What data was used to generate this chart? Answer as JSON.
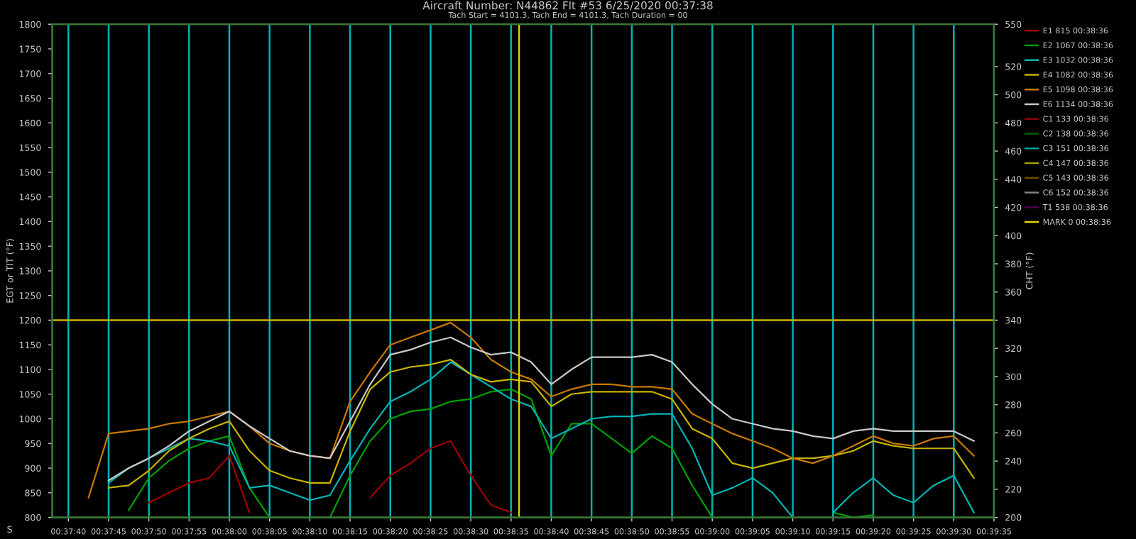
{
  "chart_data": {
    "type": "line",
    "title": "Aircraft Number: N44862 Flt #53 6/25/2020 00:37:38",
    "subtitle": "Tach Start = 4101.3, Tach End = 4101.3, Tach Duration = 00",
    "ylabel": "EGT or TIT (°F)",
    "y2label": "CHT (°F)",
    "annotations": [
      "S"
    ],
    "x": [
      0.628472,
      0.629167,
      0.629861,
      0.630556,
      0.63125,
      0.631944,
      0.632639,
      0.633333,
      0.634028,
      0.634722,
      0.635417,
      0.636111,
      0.636806,
      0.6375,
      0.638194,
      0.638889,
      0.639583,
      0.640278,
      0.640972,
      0.641667,
      0.642361,
      0.643056,
      0.64375,
      0.644444,
      0.645139,
      0.645833,
      0.646528,
      0.647222,
      0.647917,
      0.648611,
      0.649306,
      0.65,
      0.650694,
      0.651389,
      0.652083,
      0.652778,
      0.653472,
      0.654167,
      0.654861,
      0.655556,
      0.65625,
      0.656944,
      0.657639,
      0.658333,
      0.659028
    ],
    "series": [
      {
        "name": "E1 815 00:38:36",
        "color": "#a00000",
        "values": [
          null,
          null,
          null,
          830,
          850,
          870,
          880,
          925,
          810,
          null,
          null,
          null,
          null,
          null,
          840,
          885,
          910,
          940,
          955,
          885,
          825,
          810,
          null,
          null,
          null,
          null,
          null,
          null,
          null,
          null,
          null,
          null,
          null,
          null,
          null,
          null,
          null,
          null,
          null,
          null,
          null,
          null,
          null,
          null,
          null
        ]
      },
      {
        "name": "E2 1067 00:38:36",
        "color": "#00a000",
        "values": [
          null,
          null,
          815,
          880,
          915,
          940,
          955,
          965,
          860,
          800,
          null,
          null,
          800,
          885,
          955,
          1000,
          1015,
          1020,
          1035,
          1040,
          1055,
          1060,
          1040,
          925,
          990,
          990,
          960,
          930,
          965,
          940,
          865,
          800,
          null,
          null,
          null,
          null,
          null,
          810,
          800,
          805,
          null,
          null,
          null,
          null,
          null
        ]
      },
      {
        "name": "E3 1032 00:38:36",
        "color": "#00b4b4",
        "values": [
          null,
          870,
          900,
          920,
          940,
          960,
          955,
          945,
          860,
          865,
          850,
          835,
          845,
          915,
          980,
          1035,
          1055,
          1080,
          1115,
          1090,
          1065,
          1040,
          1025,
          960,
          980,
          1000,
          1005,
          1005,
          1010,
          1010,
          940,
          845,
          860,
          880,
          850,
          800,
          null,
          810,
          850,
          880,
          845,
          830,
          865,
          885,
          810
        ]
      },
      {
        "name": "E4 1082 00:38:36",
        "color": "#c8b400",
        "values": [
          null,
          860,
          865,
          895,
          935,
          960,
          980,
          995,
          935,
          895,
          880,
          870,
          870,
          975,
          1060,
          1095,
          1105,
          1110,
          1120,
          1090,
          1075,
          1080,
          1075,
          1025,
          1050,
          1055,
          1055,
          1055,
          1055,
          1040,
          980,
          960,
          910,
          900,
          910,
          920,
          920,
          925,
          935,
          955,
          945,
          940,
          940,
          940,
          880
        ]
      },
      {
        "name": "E5 1098 00:38:36",
        "color": "#c87800",
        "values": [
          840,
          970,
          975,
          980,
          990,
          995,
          1005,
          1015,
          985,
          950,
          935,
          925,
          920,
          1035,
          1095,
          1150,
          1165,
          1180,
          1195,
          1165,
          1120,
          1095,
          1080,
          1045,
          1060,
          1070,
          1070,
          1065,
          1065,
          1060,
          1010,
          990,
          970,
          955,
          940,
          920,
          910,
          925,
          945,
          965,
          950,
          945,
          960,
          965,
          925
        ]
      },
      {
        "name": "E6 1134 00:38:36",
        "color": "#c8c8c8",
        "values": [
          null,
          875,
          900,
          920,
          945,
          975,
          995,
          1015,
          985,
          960,
          935,
          925,
          920,
          995,
          1070,
          1130,
          1140,
          1155,
          1165,
          1145,
          1130,
          1135,
          1115,
          1070,
          1100,
          1125,
          1125,
          1125,
          1130,
          1115,
          1070,
          1030,
          1000,
          990,
          980,
          975,
          965,
          960,
          975,
          980,
          975,
          975,
          975,
          975,
          955
        ]
      },
      {
        "name": "C1 133 00:38:36",
        "color": "#8b0000",
        "values": [
          null,
          null,
          null,
          null,
          null,
          null,
          null,
          null,
          null,
          null,
          null,
          null,
          null,
          null,
          null,
          null,
          null,
          null,
          null,
          null,
          null,
          null,
          null,
          null,
          null,
          null,
          null,
          null,
          null,
          null,
          null,
          null,
          null,
          null,
          null,
          null,
          null,
          null,
          null,
          null,
          null,
          null,
          null,
          null,
          null
        ]
      },
      {
        "name": "C2 138 00:38:36",
        "color": "#006400",
        "values": [
          null,
          null,
          null,
          null,
          null,
          null,
          null,
          null,
          null,
          null,
          null,
          null,
          null,
          null,
          null,
          null,
          null,
          null,
          null,
          null,
          null,
          null,
          null,
          null,
          null,
          null,
          null,
          null,
          null,
          null,
          null,
          null,
          null,
          null,
          null,
          null,
          null,
          null,
          null,
          null,
          null,
          null,
          null,
          null,
          null
        ]
      },
      {
        "name": "C3 151 00:38:36",
        "color": "#00a0a0",
        "values": [
          null,
          null,
          null,
          null,
          null,
          null,
          null,
          null,
          null,
          null,
          null,
          null,
          null,
          null,
          null,
          null,
          null,
          null,
          null,
          null,
          null,
          null,
          null,
          null,
          null,
          null,
          null,
          null,
          null,
          null,
          null,
          null,
          null,
          null,
          null,
          null,
          null,
          null,
          null,
          null,
          null,
          null,
          null,
          null,
          null
        ]
      },
      {
        "name": "C4 147 00:38:36",
        "color": "#a0a000",
        "values": [
          null,
          null,
          null,
          null,
          null,
          null,
          null,
          null,
          null,
          null,
          null,
          null,
          null,
          null,
          null,
          null,
          null,
          null,
          null,
          null,
          null,
          null,
          null,
          null,
          null,
          null,
          null,
          null,
          null,
          null,
          null,
          null,
          null,
          null,
          null,
          null,
          null,
          null,
          null,
          null,
          null,
          null,
          null,
          null,
          null
        ]
      },
      {
        "name": "C5 143 00:38:36",
        "color": "#6b4a00",
        "values": [
          null,
          null,
          null,
          null,
          null,
          null,
          null,
          null,
          null,
          null,
          null,
          null,
          null,
          null,
          null,
          null,
          null,
          null,
          null,
          null,
          null,
          null,
          null,
          null,
          null,
          null,
          null,
          null,
          null,
          null,
          null,
          null,
          null,
          null,
          null,
          null,
          null,
          null,
          null,
          null,
          null,
          null,
          null,
          null,
          null
        ]
      },
      {
        "name": "C6 152 00:38:36",
        "color": "#808080",
        "values": [
          null,
          null,
          null,
          null,
          null,
          null,
          null,
          null,
          null,
          null,
          null,
          null,
          null,
          null,
          null,
          null,
          null,
          null,
          null,
          null,
          null,
          null,
          null,
          null,
          null,
          null,
          null,
          null,
          null,
          null,
          null,
          null,
          null,
          null,
          null,
          null,
          null,
          null,
          null,
          null,
          null,
          null,
          null,
          null,
          null
        ]
      },
      {
        "name": "T1 538 00:38:36",
        "color": "#500050",
        "values": [
          null,
          null,
          null,
          null,
          null,
          null,
          null,
          null,
          null,
          null,
          null,
          null,
          null,
          null,
          null,
          null,
          null,
          null,
          null,
          null,
          null,
          null,
          null,
          null,
          null,
          null,
          null,
          null,
          null,
          null,
          null,
          null,
          null,
          null,
          null,
          null,
          null,
          null,
          null,
          null,
          null,
          null,
          null,
          null,
          null
        ]
      },
      {
        "name": "MARK 0 00:38:36",
        "color": "#e6d200",
        "x": [
          0.643333,
          0.643333
        ],
        "values": [
          800,
          1800
        ]
      }
    ],
    "ref_lines": [
      {
        "axis": "y",
        "value": 1200,
        "color": "#c8b400"
      }
    ],
    "xlim": [
      0.627222,
      0.659722
    ],
    "xticks": [
      {
        "value": 0.627778,
        "label": "00:37:40"
      },
      {
        "value": 0.629167,
        "label": "00:37:45"
      },
      {
        "value": 0.630556,
        "label": "00:37:50"
      },
      {
        "value": 0.631944,
        "label": "00:37:55"
      },
      {
        "value": 0.633333,
        "label": "00:38:00"
      },
      {
        "value": 0.634722,
        "label": "00:38:05"
      },
      {
        "value": 0.636111,
        "label": "00:38:10"
      },
      {
        "value": 0.6375,
        "label": "00:38:15"
      },
      {
        "value": 0.638889,
        "label": "00:38:20"
      },
      {
        "value": 0.640278,
        "label": "00:38:25"
      },
      {
        "value": 0.641667,
        "label": "00:38:30"
      },
      {
        "value": 0.643056,
        "label": "00:38:35"
      },
      {
        "value": 0.644444,
        "label": "00:38:40"
      },
      {
        "value": 0.645833,
        "label": "00:38:45"
      },
      {
        "value": 0.647222,
        "label": "00:38:50"
      },
      {
        "value": 0.648611,
        "label": "00:38:55"
      },
      {
        "value": 0.65,
        "label": "00:39:00"
      },
      {
        "value": 0.651389,
        "label": "00:39:05"
      },
      {
        "value": 0.652778,
        "label": "00:39:10"
      },
      {
        "value": 0.654167,
        "label": "00:39:15"
      },
      {
        "value": 0.655556,
        "label": "00:39:20"
      },
      {
        "value": 0.656944,
        "label": "00:39:25"
      },
      {
        "value": 0.658333,
        "label": "00:39:30"
      },
      {
        "value": 0.659722,
        "label": "00:39:35"
      }
    ],
    "ylim": [
      800,
      1800
    ],
    "yticks": [
      800,
      850,
      900,
      950,
      1000,
      1050,
      1100,
      1150,
      1200,
      1250,
      1300,
      1350,
      1400,
      1450,
      1500,
      1550,
      1600,
      1650,
      1700,
      1750,
      1800
    ],
    "y2lim": [
      200,
      550
    ],
    "y2ticks": [
      200,
      220,
      240,
      260,
      280,
      300,
      320,
      340,
      360,
      380,
      400,
      420,
      440,
      460,
      480,
      500,
      520,
      550
    ],
    "grid": "x",
    "legend": "right",
    "marker": "none",
    "line_style": "solid"
  }
}
